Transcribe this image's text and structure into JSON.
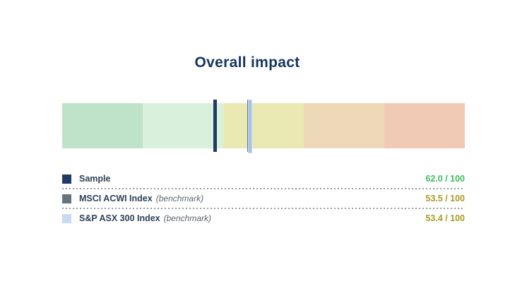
{
  "title": "Overall impact",
  "chart_data": {
    "type": "bullet-gauge",
    "title": "Overall impact",
    "scale": {
      "min": 0,
      "max": 100,
      "orientation": "horizontal",
      "direction": "100-at-left-to-0-at-right"
    },
    "bands": [
      {
        "range": "100-80",
        "color": "#bee3c8"
      },
      {
        "range": "80-60",
        "color": "#d9f1dc"
      },
      {
        "range": "60-40",
        "color": "#eae9b4"
      },
      {
        "range": "40-20",
        "color": "#edd9b8"
      },
      {
        "range": "20-0",
        "color": "#f0cab5"
      }
    ],
    "markers": [
      {
        "name": "Sample",
        "value": 62.0,
        "max": 100,
        "color": "#1f3d63"
      },
      {
        "name": "MSCI ACWI Index",
        "value": 53.5,
        "max": 100,
        "color": "#68737e"
      },
      {
        "name": "S&P ASX 300 Index",
        "value": 53.4,
        "max": 100,
        "color": "#a6c3e7"
      }
    ]
  },
  "legend": {
    "rows": [
      {
        "label": "Sample",
        "suffix": "",
        "value": "62.0 / 100",
        "swatch_color": "#1e3c64",
        "value_color": "#3ebc5c"
      },
      {
        "label": "MSCI ACWI Index",
        "suffix": "(benchmark)",
        "value": "53.5 / 100",
        "swatch_color": "#68737e",
        "value_color": "#a89c1e"
      },
      {
        "label": "S&P ASX 300 Index",
        "suffix": "(benchmark)",
        "value": "53.4 / 100",
        "swatch_color": "#c7dbf4",
        "value_color": "#a89c1e"
      }
    ]
  }
}
